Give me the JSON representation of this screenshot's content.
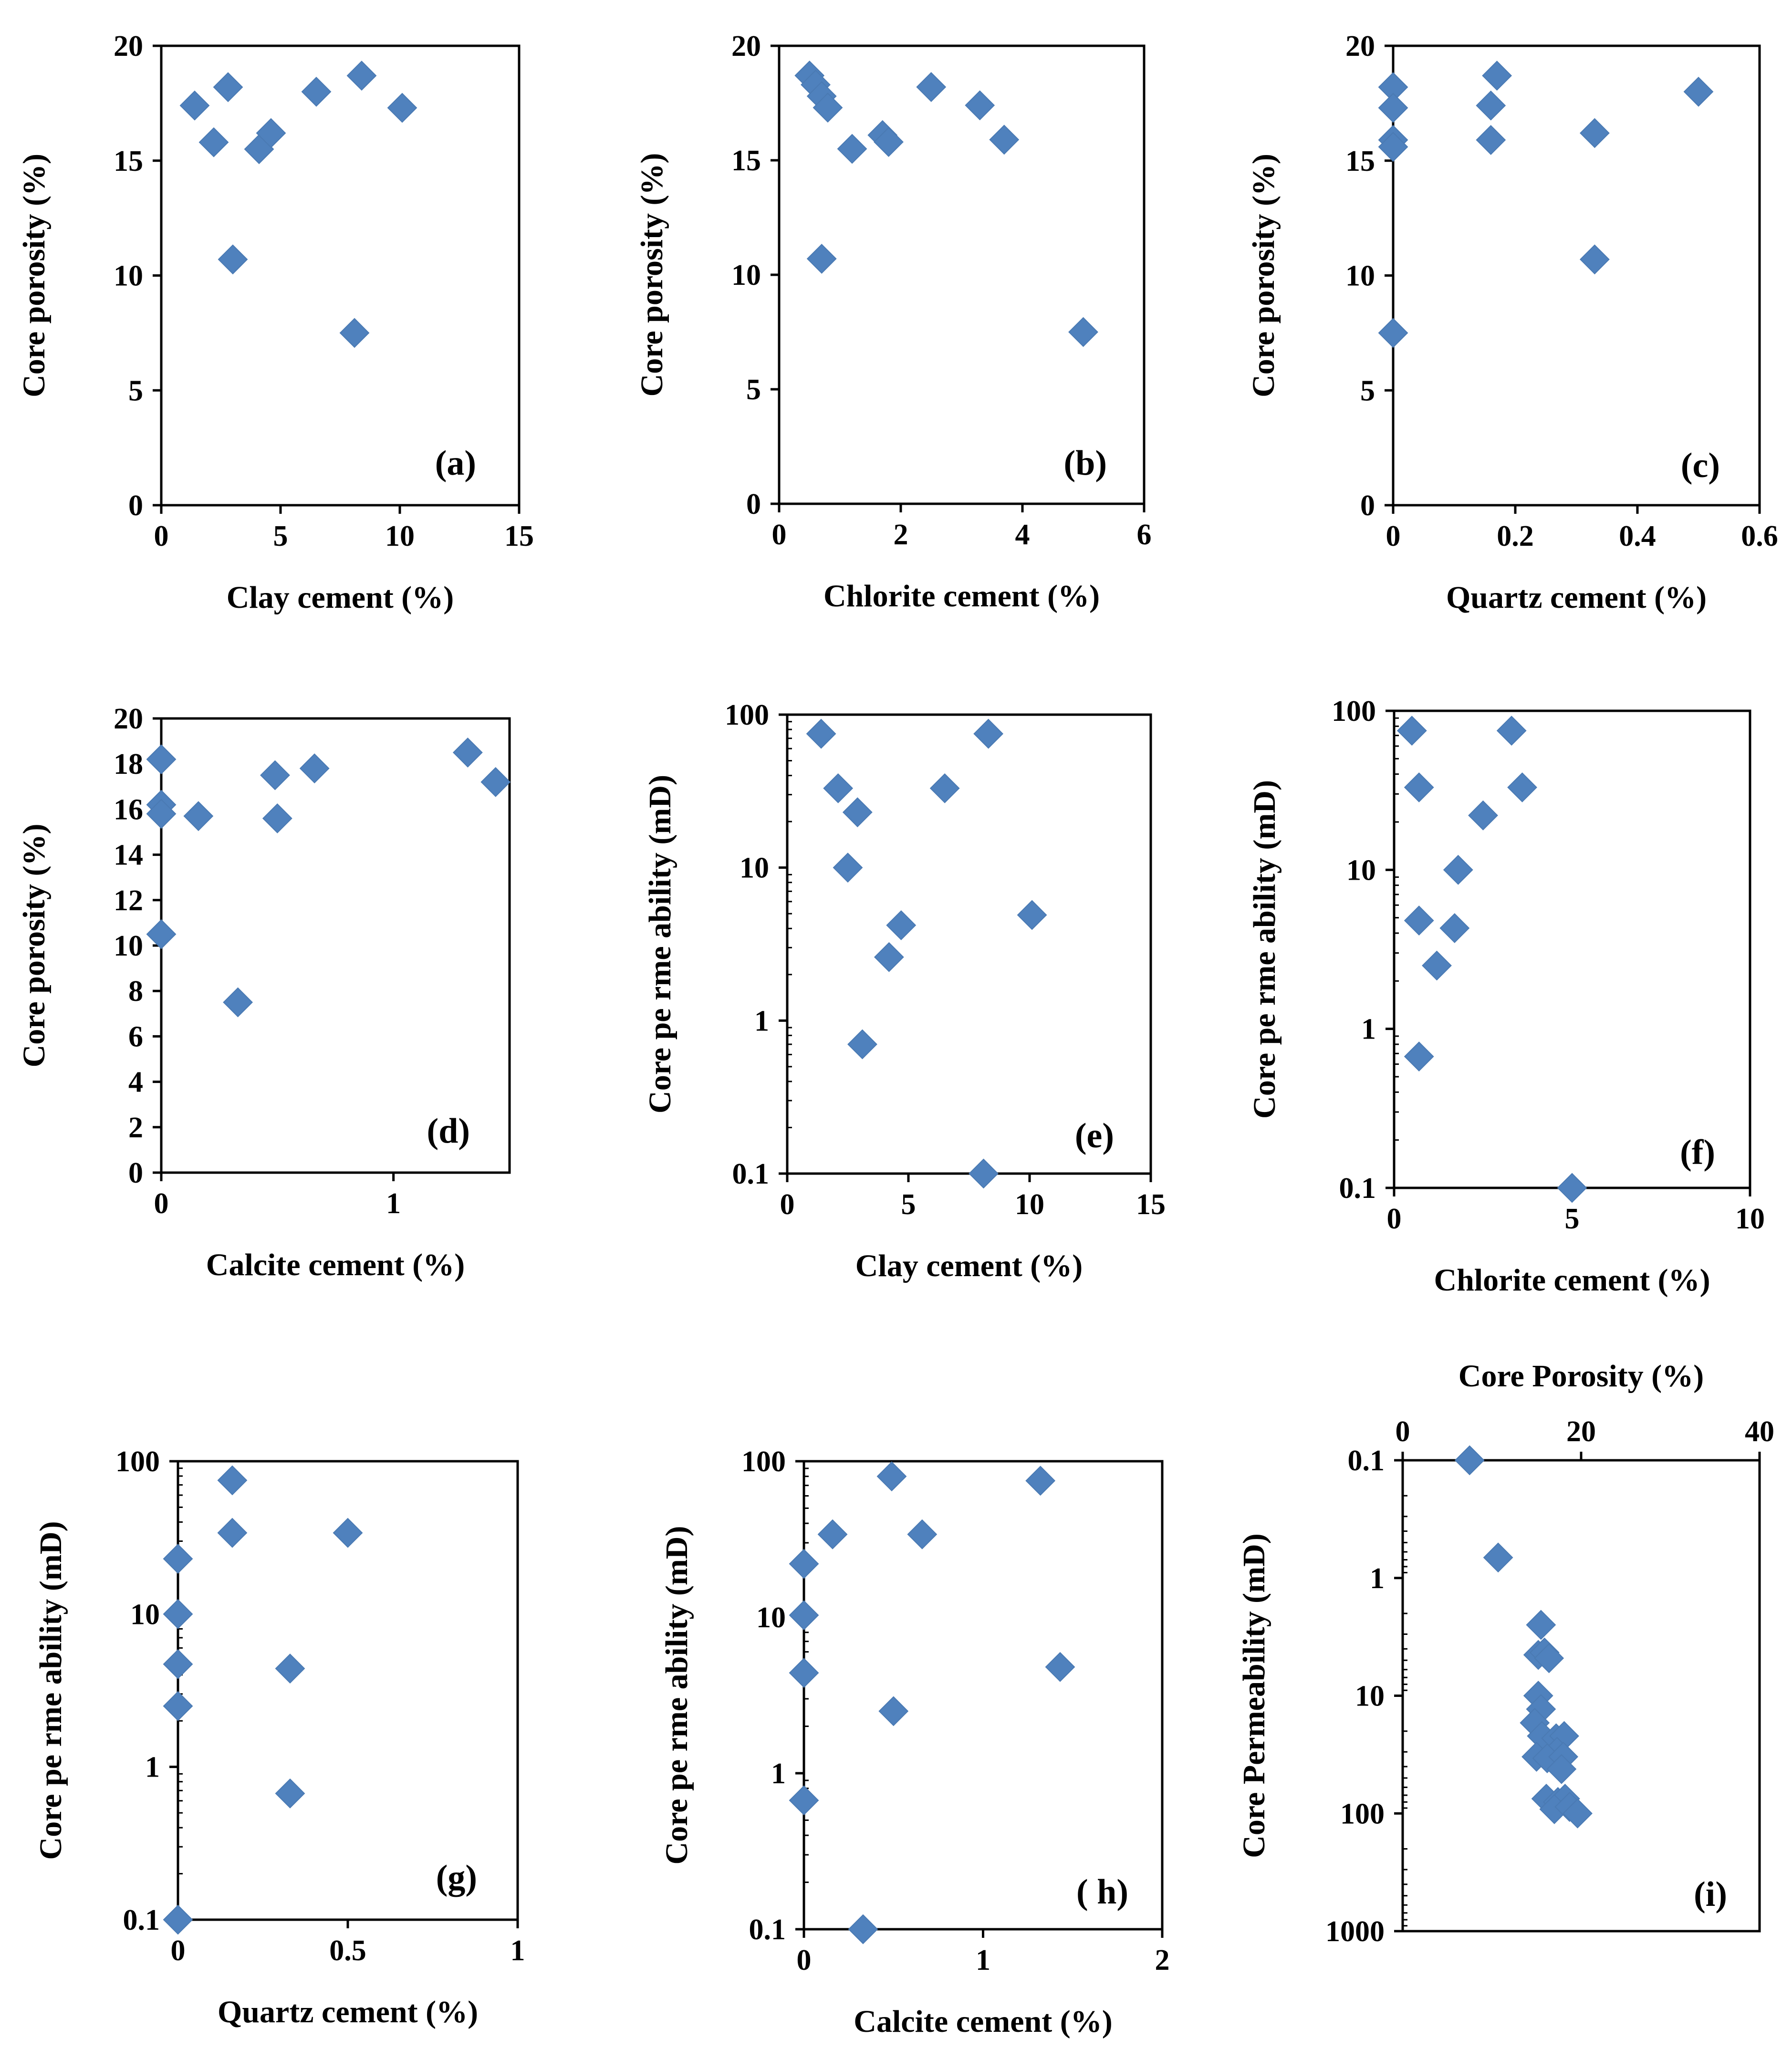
{
  "figure": {
    "marker_color": "#4f81bd",
    "panels": [
      {
        "id": "a",
        "panel_label": "(a)",
        "xlabel": "Clay cement (%)",
        "ylabel": "Core porosity (%)",
        "xscale": "linear",
        "yscale": "linear",
        "xlim": [
          0,
          15
        ],
        "ylim": [
          0,
          20
        ],
        "xticks": [
          0,
          5,
          10,
          15
        ],
        "xtick_labels": [
          "0",
          "5",
          "10",
          "15"
        ],
        "yticks": [
          0,
          5,
          10,
          15,
          20
        ],
        "ytick_labels": [
          "0",
          "5",
          "10",
          "15",
          "20"
        ],
        "points": [
          [
            1.4,
            17.4
          ],
          [
            2.2,
            15.8
          ],
          [
            2.8,
            18.2
          ],
          [
            3.0,
            10.7
          ],
          [
            4.1,
            15.5
          ],
          [
            4.6,
            16.2
          ],
          [
            6.5,
            18.0
          ],
          [
            8.1,
            7.5
          ],
          [
            8.4,
            18.7
          ],
          [
            10.1,
            17.3
          ]
        ]
      },
      {
        "id": "b",
        "panel_label": "(b)",
        "xlabel": "Chlorite cement (%)",
        "ylabel": "Core porosity (%)",
        "xscale": "linear",
        "yscale": "linear",
        "xlim": [
          0,
          6
        ],
        "ylim": [
          0,
          20
        ],
        "xticks": [
          0,
          2,
          4,
          6
        ],
        "xtick_labels": [
          "0",
          "2",
          "4",
          "6"
        ],
        "yticks": [
          0,
          5,
          10,
          15,
          20
        ],
        "ytick_labels": [
          "0",
          "5",
          "10",
          "15",
          "20"
        ],
        "points": [
          [
            0.5,
            18.7
          ],
          [
            0.6,
            18.3
          ],
          [
            0.7,
            17.8
          ],
          [
            0.8,
            17.3
          ],
          [
            0.7,
            10.7
          ],
          [
            1.2,
            15.5
          ],
          [
            1.7,
            16.1
          ],
          [
            1.8,
            15.8
          ],
          [
            2.5,
            18.2
          ],
          [
            3.3,
            17.4
          ],
          [
            3.7,
            15.9
          ],
          [
            5.0,
            7.5
          ]
        ]
      },
      {
        "id": "c",
        "panel_label": "(c)",
        "xlabel": "Quartz  cement (%)",
        "ylabel": "Core porosity (%)",
        "xscale": "linear",
        "yscale": "linear",
        "xlim": [
          0,
          0.6
        ],
        "ylim": [
          0,
          20
        ],
        "xticks": [
          0,
          0.2,
          0.4,
          0.6
        ],
        "xtick_labels": [
          "0",
          "0.2",
          "0.4",
          "0.6"
        ],
        "yticks": [
          0,
          5,
          10,
          15,
          20
        ],
        "ytick_labels": [
          "0",
          "5",
          "10",
          "15",
          "20"
        ],
        "points": [
          [
            0,
            18.2
          ],
          [
            0,
            17.3
          ],
          [
            0,
            15.9
          ],
          [
            0,
            15.6
          ],
          [
            0,
            7.5
          ],
          [
            0.16,
            17.4
          ],
          [
            0.16,
            15.9
          ],
          [
            0.17,
            18.7
          ],
          [
            0.33,
            16.2
          ],
          [
            0.33,
            10.7
          ],
          [
            0.5,
            18.0
          ]
        ]
      },
      {
        "id": "d",
        "panel_label": "(d)",
        "xlabel": "Calcite cement (%)",
        "ylabel": "Core porosity (%)",
        "xscale": "linear",
        "yscale": "linear",
        "xlim": [
          0,
          1.5
        ],
        "ylim": [
          0,
          20
        ],
        "xticks": [
          0,
          1
        ],
        "xtick_labels": [
          "0",
          "1"
        ],
        "yticks": [
          0,
          2,
          4,
          6,
          8,
          10,
          12,
          14,
          16,
          18,
          20
        ],
        "ytick_labels": [
          "0",
          "2",
          "4",
          "6",
          "8",
          "10",
          "12",
          "14",
          "16",
          "18",
          "20"
        ],
        "points": [
          [
            0.0,
            18.2
          ],
          [
            0.0,
            16.2
          ],
          [
            0.0,
            15.8
          ],
          [
            0.0,
            10.5
          ],
          [
            0.16,
            15.7
          ],
          [
            0.33,
            7.5
          ],
          [
            0.49,
            17.5
          ],
          [
            0.5,
            15.6
          ],
          [
            0.66,
            17.8
          ],
          [
            1.32,
            18.5
          ],
          [
            1.44,
            17.2
          ]
        ]
      },
      {
        "id": "e",
        "panel_label": "(e)",
        "xlabel": "Clay cement (%)",
        "ylabel": "Core pe rme ability  (mD)",
        "xscale": "linear",
        "yscale": "log",
        "xlim": [
          0,
          15
        ],
        "ylim": [
          0.1,
          100
        ],
        "xticks": [
          0,
          5,
          10,
          15
        ],
        "xtick_labels": [
          "0",
          "5",
          "10",
          "15"
        ],
        "yticks": [
          0.1,
          1,
          10,
          100
        ],
        "ytick_labels": [
          "0.1",
          "1",
          "10",
          "100"
        ],
        "points": [
          [
            1.4,
            75
          ],
          [
            2.1,
            33
          ],
          [
            2.9,
            23
          ],
          [
            2.5,
            10
          ],
          [
            4.7,
            4.2
          ],
          [
            4.2,
            2.6
          ],
          [
            3.1,
            0.7
          ],
          [
            6.5,
            33
          ],
          [
            8.3,
            75
          ],
          [
            10.1,
            4.9
          ],
          [
            8.1,
            0.1
          ]
        ]
      },
      {
        "id": "f",
        "panel_label": "(f)",
        "xlabel": "Chlorite cement (%)",
        "ylabel": "Core pe rme ability  (mD)",
        "xscale": "linear",
        "yscale": "log",
        "xlim": [
          0,
          10
        ],
        "ylim": [
          0.1,
          100
        ],
        "xticks": [
          0,
          5,
          10
        ],
        "xtick_labels": [
          "0",
          "5",
          "10"
        ],
        "yticks": [
          0.1,
          1,
          10,
          100
        ],
        "ytick_labels": [
          "0.1",
          "1",
          "10",
          "100"
        ],
        "points": [
          [
            0.5,
            75
          ],
          [
            0.7,
            33
          ],
          [
            0.7,
            4.8
          ],
          [
            0.7,
            0.67
          ],
          [
            1.2,
            2.5
          ],
          [
            1.7,
            4.3
          ],
          [
            1.8,
            10
          ],
          [
            2.5,
            22
          ],
          [
            3.3,
            75
          ],
          [
            3.6,
            33
          ],
          [
            5.0,
            0.1
          ]
        ]
      },
      {
        "id": "g",
        "panel_label": "(g)",
        "xlabel": "Quartz  cement (%)",
        "ylabel": "Core pe rme ability  (mD)",
        "xscale": "linear",
        "yscale": "log",
        "xlim": [
          0,
          1
        ],
        "ylim": [
          0.1,
          100
        ],
        "xticks": [
          0,
          0.5,
          1
        ],
        "xtick_labels": [
          "0",
          "0.5",
          "1"
        ],
        "yticks": [
          0.1,
          1,
          10,
          100
        ],
        "ytick_labels": [
          "0.1",
          "1",
          "10",
          "100"
        ],
        "points": [
          [
            0,
            23
          ],
          [
            0,
            10
          ],
          [
            0,
            4.7
          ],
          [
            0,
            2.5
          ],
          [
            0,
            0.1
          ],
          [
            0.16,
            75
          ],
          [
            0.16,
            34
          ],
          [
            0.33,
            4.4
          ],
          [
            0.33,
            0.67
          ],
          [
            0.5,
            34
          ]
        ]
      },
      {
        "id": "h",
        "panel_label": "( h)",
        "xlabel": "Calcite cement (%)",
        "ylabel": "Core pe rme ability  (mD)",
        "xscale": "linear",
        "yscale": "log",
        "xlim": [
          0,
          2
        ],
        "ylim": [
          0.1,
          100
        ],
        "xticks": [
          0,
          1,
          2
        ],
        "xtick_labels": [
          "0",
          "1",
          "2"
        ],
        "yticks": [
          0.1,
          1,
          10,
          100
        ],
        "ytick_labels": [
          "0.1",
          "1",
          "10",
          "100"
        ],
        "points": [
          [
            0,
            22
          ],
          [
            0,
            10.3
          ],
          [
            0,
            4.4
          ],
          [
            0,
            0.67
          ],
          [
            0.16,
            34
          ],
          [
            0.33,
            0.1
          ],
          [
            0.49,
            80
          ],
          [
            0.5,
            2.5
          ],
          [
            0.66,
            34
          ],
          [
            1.32,
            75
          ],
          [
            1.43,
            4.8
          ]
        ]
      },
      {
        "id": "i",
        "panel_label": "(i)",
        "xlabel": "Core Porosity (%)",
        "ylabel": "Core Permeability  (mD)",
        "xaxis_position": "top",
        "y_inverted": true,
        "xscale": "linear",
        "yscale": "log",
        "xlim": [
          0,
          40
        ],
        "ylim": [
          0.1,
          1000
        ],
        "xticks": [
          0,
          20,
          40
        ],
        "xtick_labels": [
          "0",
          "20",
          "40"
        ],
        "yticks": [
          0.1,
          1,
          10,
          100,
          1000
        ],
        "ytick_labels": [
          "0.1",
          "1",
          "10",
          "100",
          "1000"
        ],
        "points": [
          [
            7.5,
            0.1
          ],
          [
            10.7,
            0.67
          ],
          [
            15.5,
            2.5
          ],
          [
            15.2,
            4.5
          ],
          [
            15.9,
            4.3
          ],
          [
            16.4,
            4.8
          ],
          [
            15.2,
            10
          ],
          [
            15.5,
            13
          ],
          [
            14.8,
            17
          ],
          [
            15.6,
            22
          ],
          [
            17.2,
            23
          ],
          [
            18.1,
            22
          ],
          [
            17.3,
            30
          ],
          [
            15.0,
            33
          ],
          [
            16.2,
            34
          ],
          [
            18.0,
            33
          ],
          [
            17.8,
            42
          ],
          [
            16.1,
            75
          ],
          [
            17.4,
            80
          ],
          [
            18.2,
            75
          ],
          [
            17.0,
            92
          ],
          [
            18.7,
            88
          ],
          [
            19.6,
            100
          ]
        ]
      }
    ]
  }
}
